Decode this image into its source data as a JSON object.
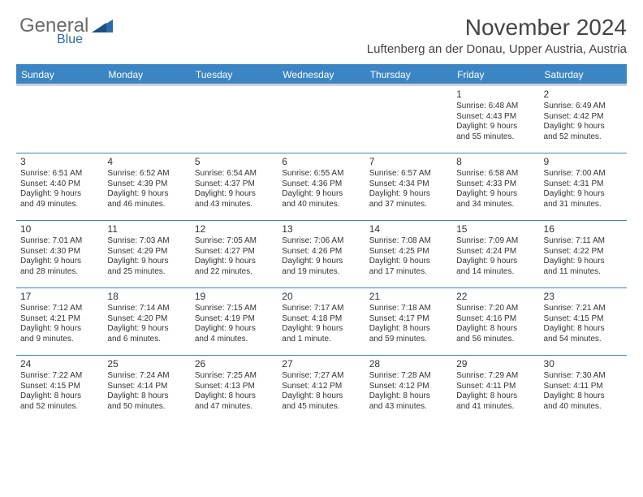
{
  "logo": {
    "text1": "General",
    "text2": "Blue"
  },
  "title": "November 2024",
  "subtitle": "Luftenberg an der Donau, Upper Austria, Austria",
  "colors": {
    "header_bg": "#3b85c5",
    "header_text": "#ffffff",
    "row_border": "#3b85c5",
    "subhead_border": "#d2d2d2",
    "body_text": "#333333",
    "logo_gray": "#6a6a6a",
    "logo_blue": "#2f6aa8"
  },
  "day_labels": [
    "Sunday",
    "Monday",
    "Tuesday",
    "Wednesday",
    "Thursday",
    "Friday",
    "Saturday"
  ],
  "weeks": [
    [
      null,
      null,
      null,
      null,
      null,
      {
        "n": "1",
        "sunrise": "Sunrise: 6:48 AM",
        "sunset": "Sunset: 4:43 PM",
        "dl1": "Daylight: 9 hours",
        "dl2": "and 55 minutes."
      },
      {
        "n": "2",
        "sunrise": "Sunrise: 6:49 AM",
        "sunset": "Sunset: 4:42 PM",
        "dl1": "Daylight: 9 hours",
        "dl2": "and 52 minutes."
      }
    ],
    [
      {
        "n": "3",
        "sunrise": "Sunrise: 6:51 AM",
        "sunset": "Sunset: 4:40 PM",
        "dl1": "Daylight: 9 hours",
        "dl2": "and 49 minutes."
      },
      {
        "n": "4",
        "sunrise": "Sunrise: 6:52 AM",
        "sunset": "Sunset: 4:39 PM",
        "dl1": "Daylight: 9 hours",
        "dl2": "and 46 minutes."
      },
      {
        "n": "5",
        "sunrise": "Sunrise: 6:54 AM",
        "sunset": "Sunset: 4:37 PM",
        "dl1": "Daylight: 9 hours",
        "dl2": "and 43 minutes."
      },
      {
        "n": "6",
        "sunrise": "Sunrise: 6:55 AM",
        "sunset": "Sunset: 4:36 PM",
        "dl1": "Daylight: 9 hours",
        "dl2": "and 40 minutes."
      },
      {
        "n": "7",
        "sunrise": "Sunrise: 6:57 AM",
        "sunset": "Sunset: 4:34 PM",
        "dl1": "Daylight: 9 hours",
        "dl2": "and 37 minutes."
      },
      {
        "n": "8",
        "sunrise": "Sunrise: 6:58 AM",
        "sunset": "Sunset: 4:33 PM",
        "dl1": "Daylight: 9 hours",
        "dl2": "and 34 minutes."
      },
      {
        "n": "9",
        "sunrise": "Sunrise: 7:00 AM",
        "sunset": "Sunset: 4:31 PM",
        "dl1": "Daylight: 9 hours",
        "dl2": "and 31 minutes."
      }
    ],
    [
      {
        "n": "10",
        "sunrise": "Sunrise: 7:01 AM",
        "sunset": "Sunset: 4:30 PM",
        "dl1": "Daylight: 9 hours",
        "dl2": "and 28 minutes."
      },
      {
        "n": "11",
        "sunrise": "Sunrise: 7:03 AM",
        "sunset": "Sunset: 4:29 PM",
        "dl1": "Daylight: 9 hours",
        "dl2": "and 25 minutes."
      },
      {
        "n": "12",
        "sunrise": "Sunrise: 7:05 AM",
        "sunset": "Sunset: 4:27 PM",
        "dl1": "Daylight: 9 hours",
        "dl2": "and 22 minutes."
      },
      {
        "n": "13",
        "sunrise": "Sunrise: 7:06 AM",
        "sunset": "Sunset: 4:26 PM",
        "dl1": "Daylight: 9 hours",
        "dl2": "and 19 minutes."
      },
      {
        "n": "14",
        "sunrise": "Sunrise: 7:08 AM",
        "sunset": "Sunset: 4:25 PM",
        "dl1": "Daylight: 9 hours",
        "dl2": "and 17 minutes."
      },
      {
        "n": "15",
        "sunrise": "Sunrise: 7:09 AM",
        "sunset": "Sunset: 4:24 PM",
        "dl1": "Daylight: 9 hours",
        "dl2": "and 14 minutes."
      },
      {
        "n": "16",
        "sunrise": "Sunrise: 7:11 AM",
        "sunset": "Sunset: 4:22 PM",
        "dl1": "Daylight: 9 hours",
        "dl2": "and 11 minutes."
      }
    ],
    [
      {
        "n": "17",
        "sunrise": "Sunrise: 7:12 AM",
        "sunset": "Sunset: 4:21 PM",
        "dl1": "Daylight: 9 hours",
        "dl2": "and 9 minutes."
      },
      {
        "n": "18",
        "sunrise": "Sunrise: 7:14 AM",
        "sunset": "Sunset: 4:20 PM",
        "dl1": "Daylight: 9 hours",
        "dl2": "and 6 minutes."
      },
      {
        "n": "19",
        "sunrise": "Sunrise: 7:15 AM",
        "sunset": "Sunset: 4:19 PM",
        "dl1": "Daylight: 9 hours",
        "dl2": "and 4 minutes."
      },
      {
        "n": "20",
        "sunrise": "Sunrise: 7:17 AM",
        "sunset": "Sunset: 4:18 PM",
        "dl1": "Daylight: 9 hours",
        "dl2": "and 1 minute."
      },
      {
        "n": "21",
        "sunrise": "Sunrise: 7:18 AM",
        "sunset": "Sunset: 4:17 PM",
        "dl1": "Daylight: 8 hours",
        "dl2": "and 59 minutes."
      },
      {
        "n": "22",
        "sunrise": "Sunrise: 7:20 AM",
        "sunset": "Sunset: 4:16 PM",
        "dl1": "Daylight: 8 hours",
        "dl2": "and 56 minutes."
      },
      {
        "n": "23",
        "sunrise": "Sunrise: 7:21 AM",
        "sunset": "Sunset: 4:15 PM",
        "dl1": "Daylight: 8 hours",
        "dl2": "and 54 minutes."
      }
    ],
    [
      {
        "n": "24",
        "sunrise": "Sunrise: 7:22 AM",
        "sunset": "Sunset: 4:15 PM",
        "dl1": "Daylight: 8 hours",
        "dl2": "and 52 minutes."
      },
      {
        "n": "25",
        "sunrise": "Sunrise: 7:24 AM",
        "sunset": "Sunset: 4:14 PM",
        "dl1": "Daylight: 8 hours",
        "dl2": "and 50 minutes."
      },
      {
        "n": "26",
        "sunrise": "Sunrise: 7:25 AM",
        "sunset": "Sunset: 4:13 PM",
        "dl1": "Daylight: 8 hours",
        "dl2": "and 47 minutes."
      },
      {
        "n": "27",
        "sunrise": "Sunrise: 7:27 AM",
        "sunset": "Sunset: 4:12 PM",
        "dl1": "Daylight: 8 hours",
        "dl2": "and 45 minutes."
      },
      {
        "n": "28",
        "sunrise": "Sunrise: 7:28 AM",
        "sunset": "Sunset: 4:12 PM",
        "dl1": "Daylight: 8 hours",
        "dl2": "and 43 minutes."
      },
      {
        "n": "29",
        "sunrise": "Sunrise: 7:29 AM",
        "sunset": "Sunset: 4:11 PM",
        "dl1": "Daylight: 8 hours",
        "dl2": "and 41 minutes."
      },
      {
        "n": "30",
        "sunrise": "Sunrise: 7:30 AM",
        "sunset": "Sunset: 4:11 PM",
        "dl1": "Daylight: 8 hours",
        "dl2": "and 40 minutes."
      }
    ]
  ]
}
